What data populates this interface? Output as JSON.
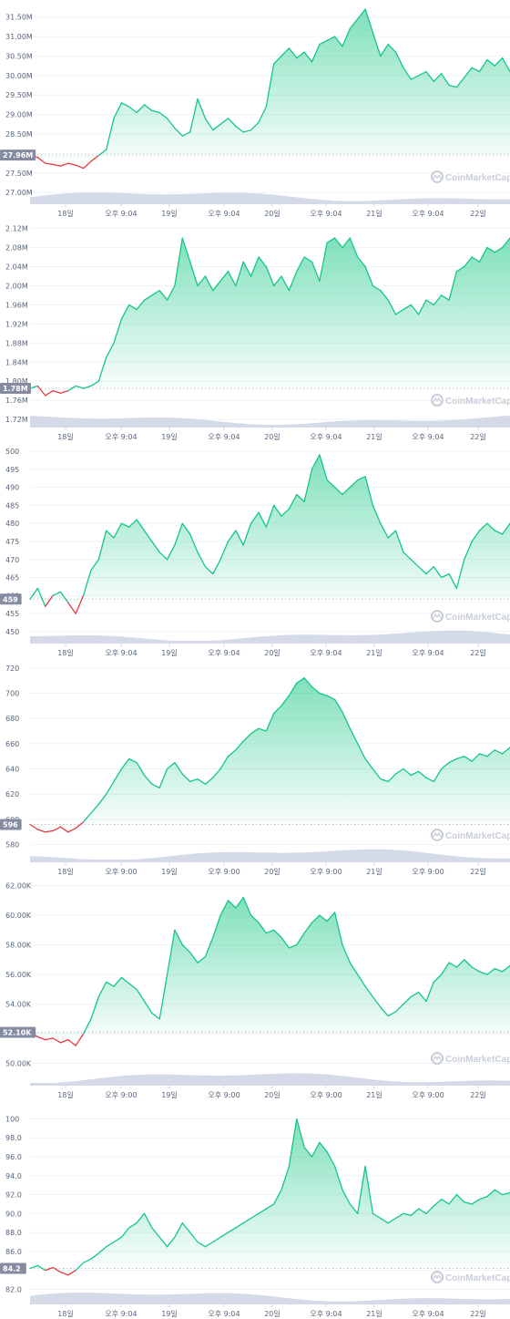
{
  "brand": {
    "watermark": "CoinMarketCap"
  },
  "colors": {
    "up": "#16c784",
    "down": "#ea3943",
    "volume": "#cfd6e4",
    "grid": "#eff2f5",
    "badge": "#858ca2"
  },
  "chart_data": [
    {
      "type": "area",
      "y_ticks": [
        "27.00M",
        "27.50M",
        "28.00M",
        "28.50M",
        "29.00M",
        "29.50M",
        "30.00M",
        "30.50M",
        "31.00M",
        "31.50M"
      ],
      "y_tick_values": [
        27.0,
        27.5,
        28.0,
        28.5,
        29.0,
        29.5,
        30.0,
        30.5,
        31.0,
        31.5
      ],
      "ylim": [
        26.7,
        31.75
      ],
      "x_ticks": [
        "18일",
        "오후 9:04",
        "19일",
        "오후 9:04",
        "20일",
        "오후 9:04",
        "21일",
        "오후 9:04",
        "22일"
      ],
      "current_label": "27.96M",
      "baseline": 27.96,
      "values": [
        27.96,
        27.9,
        27.75,
        27.72,
        27.68,
        27.75,
        27.7,
        27.62,
        27.8,
        27.95,
        28.1,
        28.9,
        29.3,
        29.2,
        29.05,
        29.25,
        29.1,
        29.05,
        28.9,
        28.65,
        28.45,
        28.55,
        29.4,
        28.9,
        28.6,
        28.75,
        28.9,
        28.7,
        28.55,
        28.6,
        28.8,
        29.2,
        30.3,
        30.5,
        30.7,
        30.45,
        30.6,
        30.35,
        30.8,
        30.9,
        31.0,
        30.75,
        31.2,
        31.45,
        31.7,
        31.1,
        30.5,
        30.8,
        30.6,
        30.2,
        29.9,
        30.0,
        30.1,
        29.85,
        30.05,
        29.75,
        29.7,
        29.95,
        30.2,
        30.1,
        30.4,
        30.25,
        30.45,
        30.1
      ]
    },
    {
      "type": "area",
      "y_ticks": [
        "1.72M",
        "1.76M",
        "1.80M",
        "1.84M",
        "1.88M",
        "1.92M",
        "1.96M",
        "2.00M",
        "2.04M",
        "2.08M",
        "2.12M"
      ],
      "y_tick_values": [
        1.72,
        1.76,
        1.8,
        1.84,
        1.88,
        1.92,
        1.96,
        2.0,
        2.04,
        2.08,
        2.12
      ],
      "ylim": [
        1.703,
        2.125
      ],
      "x_ticks": [
        "18일",
        "오후 9:04",
        "19일",
        "오후 9:04",
        "20일",
        "오후 9:04",
        "21일",
        "오후 9:04",
        "22일"
      ],
      "current_label": "1.78M",
      "baseline": 1.785,
      "values": [
        1.785,
        1.79,
        1.77,
        1.78,
        1.775,
        1.78,
        1.79,
        1.785,
        1.79,
        1.8,
        1.85,
        1.88,
        1.93,
        1.96,
        1.95,
        1.97,
        1.98,
        1.99,
        1.97,
        2.0,
        2.1,
        2.05,
        2.0,
        2.02,
        1.99,
        2.01,
        2.03,
        2.0,
        2.05,
        2.02,
        2.06,
        2.04,
        2.0,
        2.02,
        1.99,
        2.03,
        2.06,
        2.05,
        2.01,
        2.09,
        2.1,
        2.08,
        2.1,
        2.06,
        2.04,
        2.0,
        1.99,
        1.97,
        1.94,
        1.95,
        1.96,
        1.94,
        1.97,
        1.96,
        1.98,
        1.97,
        2.03,
        2.04,
        2.06,
        2.05,
        2.08,
        2.07,
        2.08,
        2.1
      ]
    },
    {
      "type": "area",
      "y_ticks": [
        "450",
        "455",
        "460",
        "465",
        "470",
        "475",
        "480",
        "485",
        "490",
        "495",
        "500"
      ],
      "y_tick_values": [
        450,
        455,
        460,
        465,
        470,
        475,
        480,
        485,
        490,
        495,
        500
      ],
      "ylim": [
        446.7,
        500.5
      ],
      "x_ticks": [
        "18일",
        "오후 9:04",
        "19일",
        "오후 9:04",
        "20일",
        "오후 9:04",
        "21일",
        "오후 9:04",
        "22일"
      ],
      "current_label": "459",
      "baseline": 459,
      "values": [
        459,
        462,
        457,
        460,
        461,
        458,
        455,
        460,
        467,
        470,
        478,
        476,
        480,
        479,
        481,
        478,
        475,
        472,
        470,
        474,
        480,
        477,
        472,
        468,
        466,
        470,
        475,
        478,
        474,
        480,
        483,
        479,
        485,
        482,
        484,
        488,
        486,
        495,
        499,
        492,
        490,
        488,
        490,
        492,
        493,
        485,
        480,
        476,
        478,
        472,
        470,
        468,
        466,
        468,
        465,
        466,
        462,
        470,
        475,
        478,
        480,
        478,
        477,
        480
      ]
    },
    {
      "type": "area",
      "y_ticks": [
        "580",
        "600",
        "620",
        "640",
        "660",
        "680",
        "700",
        "720"
      ],
      "y_tick_values": [
        580,
        600,
        620,
        640,
        660,
        680,
        700,
        720
      ],
      "ylim": [
        566,
        722
      ],
      "x_ticks": [
        "18일",
        "오후 9:00",
        "19일",
        "오후 9:00",
        "20일",
        "오후 9:00",
        "21일",
        "오후 9:00",
        "22일"
      ],
      "current_label": "596",
      "baseline": 596,
      "values": [
        596,
        592,
        590,
        591,
        594,
        590,
        593,
        598,
        605,
        612,
        620,
        630,
        640,
        648,
        645,
        635,
        628,
        625,
        640,
        645,
        636,
        630,
        632,
        628,
        633,
        640,
        650,
        655,
        662,
        668,
        672,
        670,
        684,
        690,
        698,
        708,
        712,
        705,
        700,
        698,
        695,
        685,
        672,
        660,
        648,
        640,
        632,
        630,
        636,
        640,
        635,
        638,
        633,
        630,
        640,
        645,
        648,
        650,
        646,
        652,
        650,
        655,
        652,
        657
      ]
    },
    {
      "type": "area",
      "y_ticks": [
        "50.00K",
        "52.00K",
        "54.00K",
        "56.00K",
        "58.00K",
        "60.00K",
        "62.00K"
      ],
      "y_tick_values": [
        50.0,
        52.0,
        54.0,
        56.0,
        58.0,
        60.0,
        62.0
      ],
      "ylim": [
        48.5,
        62.1
      ],
      "x_ticks": [
        "18일",
        "오후 9:00",
        "19일",
        "오후 9:00",
        "20일",
        "오후 9:00",
        "21일",
        "오후 9:00",
        "22일"
      ],
      "current_label": "52.10K",
      "baseline": 52.1,
      "values": [
        52.1,
        51.8,
        51.6,
        51.7,
        51.4,
        51.6,
        51.2,
        52.0,
        53.0,
        54.5,
        55.5,
        55.2,
        55.8,
        55.4,
        55.0,
        54.2,
        53.4,
        53.0,
        56.0,
        59.0,
        58.0,
        57.5,
        56.8,
        57.2,
        58.5,
        60.0,
        61.0,
        60.5,
        61.2,
        60.0,
        59.5,
        58.8,
        59.0,
        58.5,
        57.8,
        58.0,
        58.8,
        59.5,
        60.0,
        59.6,
        60.2,
        58.0,
        56.8,
        56.0,
        55.2,
        54.5,
        53.8,
        53.2,
        53.5,
        54.0,
        54.5,
        54.8,
        54.2,
        55.5,
        56.0,
        56.8,
        56.5,
        57.0,
        56.5,
        56.2,
        56.0,
        56.4,
        56.2,
        56.6
      ]
    },
    {
      "type": "area",
      "y_ticks": [
        "82.0",
        "84.0",
        "86.0",
        "88.0",
        "90.0",
        "92.0",
        "94.0",
        "96.0",
        "98.0",
        "100"
      ],
      "y_tick_values": [
        82.0,
        84.0,
        86.0,
        88.0,
        90.0,
        92.0,
        94.0,
        96.0,
        98.0,
        100.0
      ],
      "ylim": [
        80.4,
        101.2
      ],
      "x_ticks": [
        "18일",
        "오후 9:04",
        "19일",
        "오후 9:04",
        "20일",
        "오후 9:04",
        "21일",
        "오후 9:04",
        "22일"
      ],
      "current_label": "84.2",
      "baseline": 84.2,
      "values": [
        84.2,
        84.5,
        84.0,
        84.3,
        83.8,
        83.5,
        84.0,
        84.8,
        85.2,
        85.8,
        86.5,
        87.0,
        87.5,
        88.5,
        89.0,
        90.0,
        88.5,
        87.5,
        86.5,
        87.5,
        89.0,
        88.0,
        87.0,
        86.5,
        87.0,
        87.5,
        88.0,
        88.5,
        89.0,
        89.5,
        90.0,
        90.5,
        91.0,
        92.5,
        95.0,
        100.0,
        97.0,
        96.0,
        97.5,
        96.5,
        95.0,
        92.5,
        91.0,
        90.0,
        95.0,
        90.0,
        89.5,
        89.0,
        89.5,
        90.0,
        89.8,
        90.5,
        90.0,
        90.8,
        91.5,
        91.0,
        92.0,
        91.2,
        91.0,
        91.5,
        91.8,
        92.5,
        92.0,
        92.2
      ]
    }
  ]
}
